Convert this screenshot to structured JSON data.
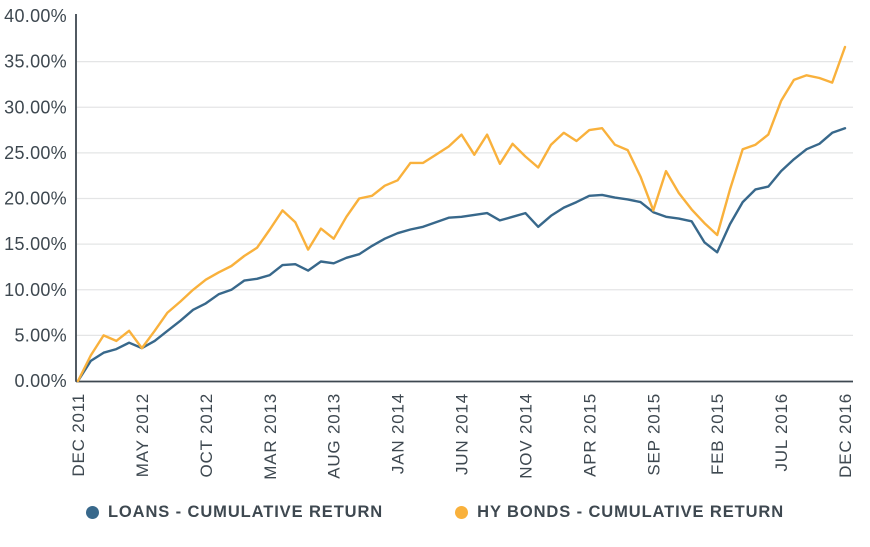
{
  "chart_data": {
    "type": "line",
    "title": "",
    "xlabel": "",
    "ylabel": "",
    "ylim": [
      0,
      40
    ],
    "grid": true,
    "legend_position": "bottom",
    "x_tick_labels": [
      "DEC 2011",
      "MAY 2012",
      "OCT 2012",
      "MAR 2013",
      "AUG 2013",
      "JAN 2014",
      "JUN 2014",
      "NOV 2014",
      "APR 2015",
      "SEP 2015",
      "FEB 2015",
      "JUL 2016",
      "DEC 2016"
    ],
    "x_tick_indices": [
      0,
      5,
      10,
      15,
      20,
      25,
      30,
      35,
      40,
      45,
      50,
      55,
      60
    ],
    "y_tick_values": [
      0,
      5,
      10,
      15,
      20,
      25,
      30,
      35,
      40
    ],
    "y_tick_labels": [
      "0.00%",
      "5.00%",
      "10.00%",
      "15.00%",
      "20.00%",
      "25.00%",
      "30.00%",
      "35.00%",
      "40.00%"
    ],
    "series": [
      {
        "name": "LOANS - CUMULATIVE RETURN",
        "color": "#38688B",
        "values": [
          0,
          2.2,
          3.1,
          3.5,
          4.2,
          3.6,
          4.4,
          5.5,
          6.6,
          7.8,
          8.5,
          9.5,
          10.0,
          11.0,
          11.2,
          11.6,
          12.7,
          12.8,
          12.1,
          13.1,
          12.9,
          13.5,
          13.9,
          14.8,
          15.6,
          16.2,
          16.6,
          16.9,
          17.4,
          17.9,
          18.0,
          18.2,
          18.4,
          17.6,
          18.0,
          18.4,
          16.9,
          18.1,
          19.0,
          19.6,
          20.3,
          20.4,
          20.1,
          19.9,
          19.6,
          18.5,
          18.0,
          17.8,
          17.5,
          15.2,
          14.1,
          17.2,
          19.6,
          21.0,
          21.3,
          23.0,
          24.3,
          25.4,
          26.0,
          27.2,
          27.7
        ]
      },
      {
        "name": "HY BONDS - CUMULATIVE RETURN",
        "color": "#F9B13C",
        "values": [
          0,
          2.8,
          5.0,
          4.4,
          5.5,
          3.6,
          5.5,
          7.5,
          8.7,
          10.0,
          11.1,
          11.9,
          12.6,
          13.7,
          14.6,
          16.6,
          18.7,
          17.4,
          14.4,
          16.7,
          15.6,
          18.0,
          20.0,
          20.3,
          21.4,
          22.0,
          23.9,
          23.9,
          24.8,
          25.7,
          27.0,
          24.8,
          27.0,
          23.8,
          26.0,
          24.6,
          23.4,
          25.9,
          27.2,
          26.3,
          27.5,
          27.7,
          25.9,
          25.3,
          22.4,
          18.7,
          23.0,
          20.6,
          18.8,
          17.3,
          16.0,
          21.0,
          25.4,
          25.9,
          27.0,
          30.7,
          33.0,
          33.5,
          33.2,
          32.7,
          36.6
        ]
      }
    ]
  },
  "colors": {
    "axis_text": "#3E4850",
    "axis_line": "#3E4850",
    "gridline": "#E4E5E6",
    "background": "#FFFFFF"
  }
}
